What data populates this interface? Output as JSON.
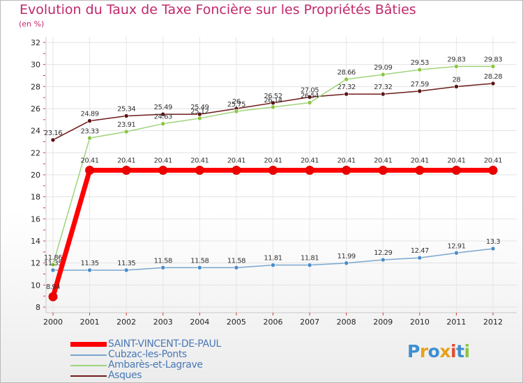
{
  "title": "Evolution du Taux de Taxe Foncière sur les Propriétés Bâties",
  "unit_label": "(en %)",
  "logo": {
    "text": "Proxiti",
    "letters": [
      "P",
      "r",
      "o",
      "x",
      "i",
      "t",
      "i"
    ],
    "colors": [
      "#3d8fd0",
      "#e9a11a",
      "#3d8fd0",
      "#e9a11a",
      "#e34c30",
      "#3d8fd0",
      "#8bc640"
    ]
  },
  "chart_data": {
    "type": "line",
    "title": "Evolution du Taux de Taxe Foncière sur les Propriétés Bâties",
    "ylabel": "(en %)",
    "xlabel": "",
    "ylim": [
      8,
      32
    ],
    "yticks": [
      "8",
      "10",
      "12",
      "14",
      "16",
      "18",
      "20",
      "22",
      "24",
      "26",
      "28",
      "30",
      "32"
    ],
    "categories": [
      "2000",
      "2001",
      "2002",
      "2003",
      "2004",
      "2005",
      "2006",
      "2007",
      "2008",
      "2009",
      "2010",
      "2011",
      "2012"
    ],
    "series": [
      {
        "name": "Asques",
        "color": "#6e1a1a",
        "marker": "#5a1414",
        "width": 1.5,
        "values": [
          23.16,
          24.89,
          25.34,
          25.49,
          25.49,
          26,
          26.52,
          27.05,
          27.32,
          27.32,
          27.59,
          28,
          28.28
        ],
        "labels": [
          "23.16",
          "24.89",
          "25.34",
          "25.49",
          "25.49",
          "26",
          "26.52",
          "27.05",
          "27.32",
          "27.32",
          "27.59",
          "28",
          "28.28"
        ]
      },
      {
        "name": "Ambarès-et-Lagrave",
        "color": "#9ed47a",
        "marker": "#8bc640",
        "width": 1.5,
        "values": [
          11.86,
          23.33,
          23.91,
          24.63,
          25.12,
          25.75,
          26.14,
          26.54,
          28.66,
          29.09,
          29.53,
          29.83,
          29.83
        ],
        "labels": [
          "11.86",
          "23.33",
          "23.91",
          "24.63",
          "25.12",
          "25.75",
          "26.14",
          "26.54",
          "28.66",
          "29.09",
          "29.53",
          "29.83",
          "29.83"
        ]
      },
      {
        "name": "Cubzac-les-Ponts",
        "color": "#7aa6cf",
        "marker": "#4a8cc8",
        "width": 1.5,
        "values": [
          11.35,
          11.35,
          11.35,
          11.58,
          11.58,
          11.58,
          11.81,
          11.81,
          11.99,
          12.29,
          12.47,
          12.91,
          13.3
        ],
        "labels": [
          "11.35",
          "11.35",
          "11.35",
          "11.58",
          "11.58",
          "11.58",
          "11.81",
          "11.81",
          "11.99",
          "12.29",
          "12.47",
          "12.91",
          "13.3"
        ]
      },
      {
        "name": "SAINT-VINCENT-DE-PAUL",
        "color": "#ff0000",
        "marker": "#ee0000",
        "width": 7,
        "values": [
          8.94,
          20.41,
          20.41,
          20.41,
          20.41,
          20.41,
          20.41,
          20.41,
          20.41,
          20.41,
          20.41,
          20.41,
          20.41
        ],
        "labels": [
          "8.94",
          "20.41",
          "20.41",
          "20.41",
          "20.41",
          "20.41",
          "20.41",
          "20.41",
          "20.41",
          "20.41",
          "20.41",
          "20.41",
          "20.41"
        ]
      }
    ],
    "legend": [
      {
        "name": "SAINT-VINCENT-DE-PAUL",
        "color": "#ff0000",
        "width": 7
      },
      {
        "name": "Cubzac-les-Ponts",
        "color": "#7aa6cf",
        "width": 2
      },
      {
        "name": "Ambarès-et-Lagrave",
        "color": "#9ed47a",
        "width": 2
      },
      {
        "name": "Asques",
        "color": "#6e1a1a",
        "width": 2
      }
    ]
  }
}
